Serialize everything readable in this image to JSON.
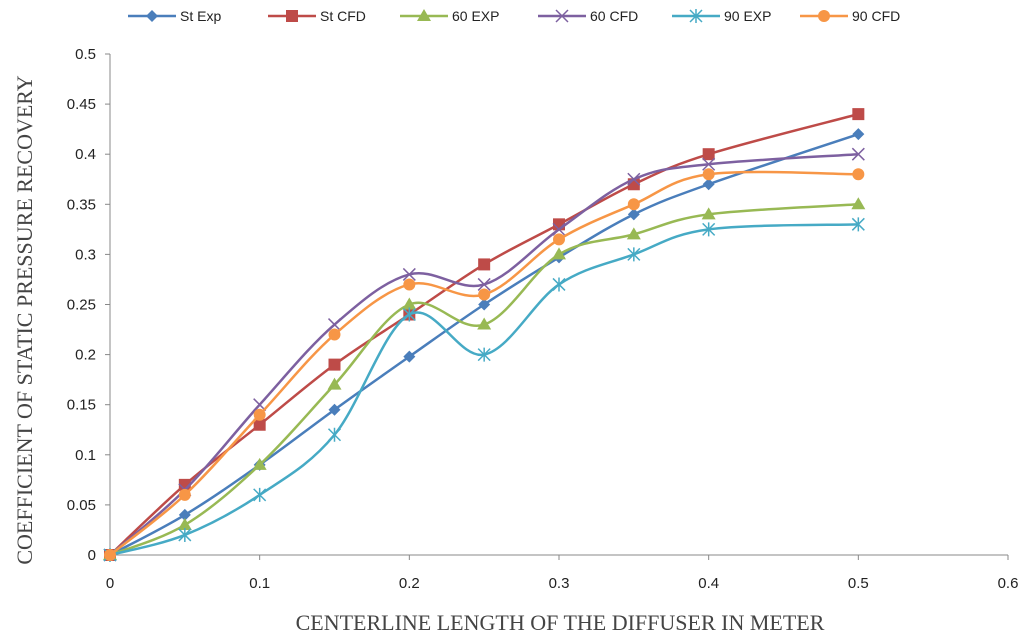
{
  "chart_data": {
    "type": "line",
    "title": "",
    "xlabel": "CENTERLINE LENGTH OF THE DIFFUSER IN METER",
    "ylabel": "COEFFICIENT OF STATIC PRESSURE RECOVERY",
    "xlim": [
      0,
      0.6
    ],
    "ylim": [
      0,
      0.5
    ],
    "xticks": [
      "0",
      "0.1",
      "0.2",
      "0.3",
      "0.4",
      "0.5",
      "0.6"
    ],
    "yticks": [
      "0",
      "0.05",
      "0.1",
      "0.15",
      "0.2",
      "0.25",
      "0.3",
      "0.35",
      "0.4",
      "0.45",
      "0.5"
    ],
    "grid": false,
    "legend_position": "top",
    "smooth": true,
    "x": [
      0,
      0.05,
      0.1,
      0.15,
      0.2,
      0.25,
      0.3,
      0.35,
      0.4,
      0.5
    ],
    "series": [
      {
        "name": "St Exp",
        "color": "#4a7ebb",
        "marker": "diamond",
        "values": [
          0,
          0.04,
          0.09,
          0.145,
          0.198,
          0.25,
          0.297,
          0.34,
          0.37,
          0.42
        ]
      },
      {
        "name": "St CFD",
        "color": "#be4b48",
        "marker": "square",
        "values": [
          0,
          0.07,
          0.13,
          0.19,
          0.24,
          0.29,
          0.33,
          0.37,
          0.4,
          0.44
        ]
      },
      {
        "name": "60 EXP",
        "color": "#98b954",
        "marker": "triangle",
        "values": [
          0,
          0.03,
          0.09,
          0.17,
          0.25,
          0.23,
          0.3,
          0.32,
          0.34,
          0.35
        ]
      },
      {
        "name": "60 CFD",
        "color": "#7d60a0",
        "marker": "x",
        "values": [
          0,
          0.065,
          0.15,
          0.23,
          0.28,
          0.27,
          0.325,
          0.375,
          0.39,
          0.4
        ]
      },
      {
        "name": "90 EXP",
        "color": "#46aac5",
        "marker": "asterisk",
        "values": [
          0,
          0.02,
          0.06,
          0.12,
          0.24,
          0.2,
          0.27,
          0.3,
          0.325,
          0.33
        ]
      },
      {
        "name": "90 CFD",
        "color": "#f79646",
        "marker": "circle",
        "values": [
          0,
          0.06,
          0.14,
          0.22,
          0.27,
          0.26,
          0.315,
          0.35,
          0.38,
          0.38
        ]
      }
    ]
  }
}
